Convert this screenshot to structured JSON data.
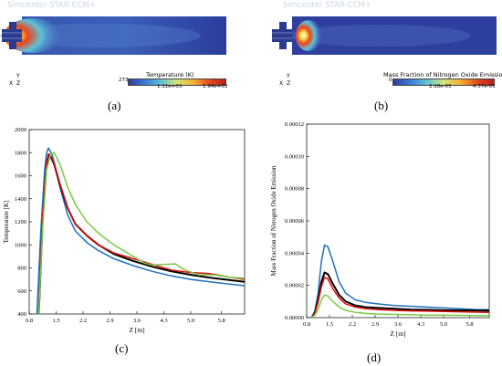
{
  "panels": {
    "a": {
      "label": "(a)",
      "watermark": "Simcenter STAR-CCM+",
      "colorbar": {
        "title": "Temperature (K)",
        "ticks": [
          "273",
          "1.11e+03",
          "1.94e+03"
        ]
      },
      "axes_triad": {
        "y": "Y",
        "x": "X",
        "z": "Z"
      }
    },
    "b": {
      "label": "(b)",
      "watermark": "Simcenter STAR-CCM+",
      "colorbar": {
        "title": "Mass Fraction of Nitrogen Oxide Emission",
        "ticks": [
          "0",
          "2.18e-05",
          "4.37e-05"
        ]
      },
      "axes_triad": {
        "y": "Y",
        "x": "X",
        "z": "Z"
      }
    },
    "c": {
      "label": "(c)"
    },
    "d": {
      "label": "(d)"
    }
  },
  "colors": {
    "blue": "#1f6fc0",
    "black": "#000000",
    "red": "#e01010",
    "green": "#7ac943",
    "contour_bg": "#2a3a9f"
  },
  "chart_data": [
    {
      "type": "line",
      "xlabel": "Z [m]",
      "ylabel": "Temperature [K]",
      "xlim": [
        0.8,
        6.4
      ],
      "ylim": [
        400,
        2000
      ],
      "xticks": [
        "0.8",
        "1.5",
        "2.2",
        "2.9",
        "3.6",
        "4.3",
        "5.0",
        "5.8"
      ],
      "yticks": [
        "400",
        "600",
        "800",
        "1000",
        "1200",
        "1400",
        "1600",
        "1800",
        "2000"
      ],
      "grid": false,
      "series": [
        {
          "color": "blue",
          "x": [
            1.0,
            1.1,
            1.2,
            1.25,
            1.3,
            1.4,
            1.6,
            1.8,
            2.0,
            2.3,
            2.6,
            3.0,
            3.5,
            4.0,
            4.5,
            5.0,
            5.5,
            6.0,
            6.4
          ],
          "y": [
            400,
            1100,
            1650,
            1800,
            1840,
            1780,
            1500,
            1260,
            1120,
            1020,
            950,
            880,
            820,
            770,
            730,
            700,
            680,
            660,
            645
          ]
        },
        {
          "color": "black",
          "x": [
            1.05,
            1.15,
            1.25,
            1.3,
            1.35,
            1.45,
            1.6,
            1.8,
            2.0,
            2.3,
            2.6,
            3.0,
            3.5,
            4.0,
            4.5,
            5.0,
            5.5,
            6.0,
            6.4
          ],
          "y": [
            400,
            1200,
            1700,
            1780,
            1770,
            1700,
            1520,
            1320,
            1180,
            1080,
            1000,
            920,
            860,
            810,
            770,
            740,
            715,
            695,
            680
          ]
        },
        {
          "color": "red",
          "x": [
            1.05,
            1.15,
            1.25,
            1.3,
            1.35,
            1.45,
            1.6,
            1.8,
            2.0,
            2.3,
            2.6,
            3.0,
            3.5,
            4.0,
            4.5,
            5.0,
            5.5,
            6.0,
            6.4
          ],
          "y": [
            400,
            1250,
            1720,
            1790,
            1780,
            1710,
            1530,
            1320,
            1180,
            1080,
            1000,
            930,
            880,
            830,
            780,
            760,
            750,
            720,
            700
          ]
        },
        {
          "color": "green",
          "x": [
            1.05,
            1.15,
            1.25,
            1.35,
            1.45,
            1.6,
            1.8,
            2.0,
            2.3,
            2.6,
            3.0,
            3.5,
            3.8,
            4.0,
            4.3,
            4.6,
            4.8,
            5.2,
            5.6,
            6.0,
            6.4
          ],
          "y": [
            400,
            1150,
            1650,
            1780,
            1800,
            1700,
            1500,
            1350,
            1200,
            1100,
            1000,
            900,
            840,
            825,
            830,
            835,
            790,
            740,
            740,
            720,
            710
          ]
        }
      ]
    },
    {
      "type": "line",
      "xlabel": "Z [m]",
      "ylabel": "Mass Fraction of Nitrogen Oxide Emission",
      "xlim": [
        0.8,
        6.4
      ],
      "ylim": [
        0,
        0.00012
      ],
      "xticks": [
        "0.8",
        "1.5",
        "2.2",
        "2.9",
        "3.6",
        "4.3",
        "5.0",
        "5.8"
      ],
      "yticks": [
        "0.00000",
        "0.00002",
        "0.00004",
        "0.00006",
        "0.00008",
        "0.00010",
        "0.00012"
      ],
      "grid": false,
      "series": [
        {
          "color": "blue",
          "x": [
            0.95,
            1.05,
            1.15,
            1.25,
            1.35,
            1.45,
            1.6,
            1.8,
            2.0,
            2.3,
            2.6,
            3.0,
            3.5,
            4.0,
            4.5,
            5.0,
            5.5,
            6.0,
            6.4
          ],
          "y": [
            0,
            4e-06,
            1.5e-05,
            3.5e-05,
            4.5e-05,
            4.4e-05,
            3.5e-05,
            2.2e-05,
            1.5e-05,
            1.1e-05,
            9.5e-06,
            8.5e-06,
            7.5e-06,
            7e-06,
            6.5e-06,
            6e-06,
            5.5e-06,
            5e-06,
            5e-06
          ]
        },
        {
          "color": "black",
          "x": [
            0.95,
            1.05,
            1.15,
            1.25,
            1.35,
            1.45,
            1.6,
            1.8,
            2.0,
            2.3,
            2.6,
            3.0,
            3.5,
            4.0,
            4.5,
            5.0,
            5.5,
            6.0,
            6.4
          ],
          "y": [
            0,
            3e-06,
            1.1e-05,
            2.2e-05,
            2.8e-05,
            2.7e-05,
            2.1e-05,
            1.4e-05,
            1e-05,
            7.5e-06,
            6.5e-06,
            6e-06,
            5.5e-06,
            5e-06,
            4.8e-06,
            4.6e-06,
            4.5e-06,
            4.4e-06,
            4.3e-06
          ]
        },
        {
          "color": "red",
          "x": [
            0.95,
            1.05,
            1.15,
            1.25,
            1.35,
            1.45,
            1.6,
            1.8,
            2.0,
            2.3,
            2.6,
            3.0,
            3.5,
            4.0,
            4.5,
            5.0,
            5.5,
            6.0,
            6.4
          ],
          "y": [
            0,
            2.5e-06,
            9.5e-06,
            1.9e-05,
            2.5e-05,
            2.4e-05,
            1.8e-05,
            1.2e-05,
            8.5e-06,
            6.5e-06,
            5.5e-06,
            5e-06,
            4.5e-06,
            4.2e-06,
            4e-06,
            3.8e-06,
            3.6e-06,
            3.4e-06,
            3.2e-06
          ]
        },
        {
          "color": "green",
          "x": [
            0.95,
            1.05,
            1.15,
            1.25,
            1.35,
            1.45,
            1.6,
            1.8,
            2.0,
            2.3,
            2.6,
            3.0,
            3.5,
            4.0,
            4.5,
            5.0,
            5.5,
            6.0,
            6.4
          ],
          "y": [
            0,
            1.5e-06,
            5e-06,
            1.1e-05,
            1.4e-05,
            1.35e-05,
            1e-05,
            6.5e-06,
            4.5e-06,
            3.2e-06,
            2.6e-06,
            2.2e-06,
            2e-06,
            1.8e-06,
            1.6e-06,
            1.5e-06,
            1.4e-06,
            1.3e-06,
            1.2e-06
          ]
        }
      ]
    }
  ]
}
